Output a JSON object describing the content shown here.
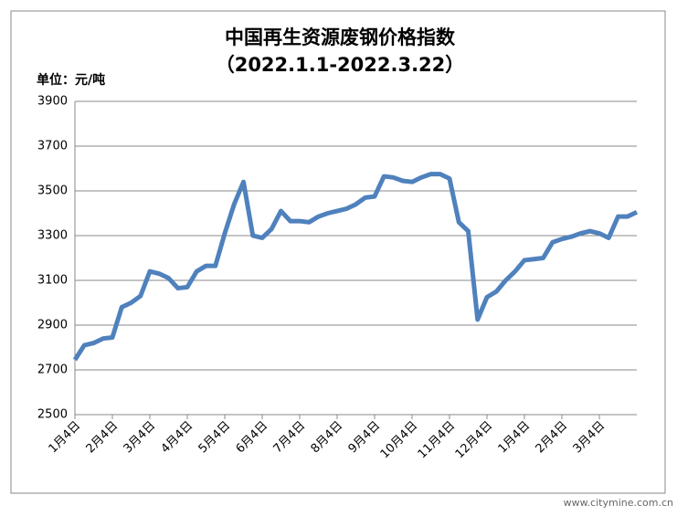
{
  "chart_data": {
    "type": "line",
    "title": "中国再生资源废钢价格指数",
    "subtitle": "（2022.1.1-2022.3.22）",
    "y_label": "单位：元/吨",
    "watermark": "www.citymine.com.cn",
    "categories": [
      "1月4日",
      null,
      null,
      null,
      "2月4日",
      null,
      null,
      null,
      "3月4日",
      null,
      null,
      null,
      "4月4日",
      null,
      null,
      null,
      "5月4日",
      null,
      null,
      null,
      "6月4日",
      null,
      null,
      null,
      "7月4日",
      null,
      null,
      null,
      "8月4日",
      null,
      null,
      null,
      "9月4日",
      null,
      null,
      null,
      "10月4日",
      null,
      null,
      null,
      "11月4日",
      null,
      null,
      null,
      "12月4日",
      null,
      null,
      null,
      "1月4日",
      null,
      null,
      null,
      "2月4日",
      null,
      null,
      null,
      "3月4日",
      null,
      null,
      null,
      null
    ],
    "series": [
      {
        "name": "废钢价格指数",
        "color": "#4f81bd",
        "values": [
          2745,
          2810,
          2820,
          2840,
          2845,
          2980,
          3000,
          3030,
          3140,
          3130,
          3110,
          3065,
          3070,
          3140,
          3165,
          3165,
          3310,
          3440,
          3540,
          3300,
          3290,
          3330,
          3410,
          3365,
          3365,
          3360,
          3385,
          3400,
          3410,
          3420,
          3440,
          3470,
          3475,
          3565,
          3560,
          3545,
          3540,
          3560,
          3575,
          3575,
          3555,
          3360,
          3320,
          2925,
          3025,
          3050,
          3100,
          3140,
          3190,
          3195,
          3200,
          3270,
          3285,
          3295,
          3310,
          3320,
          3310,
          3290,
          3385,
          3385,
          3405
        ]
      }
    ],
    "ylim": [
      2500,
      3900
    ],
    "yticks": [
      2500,
      2700,
      2900,
      3100,
      3300,
      3500,
      3700,
      3900
    ],
    "grid": true
  }
}
